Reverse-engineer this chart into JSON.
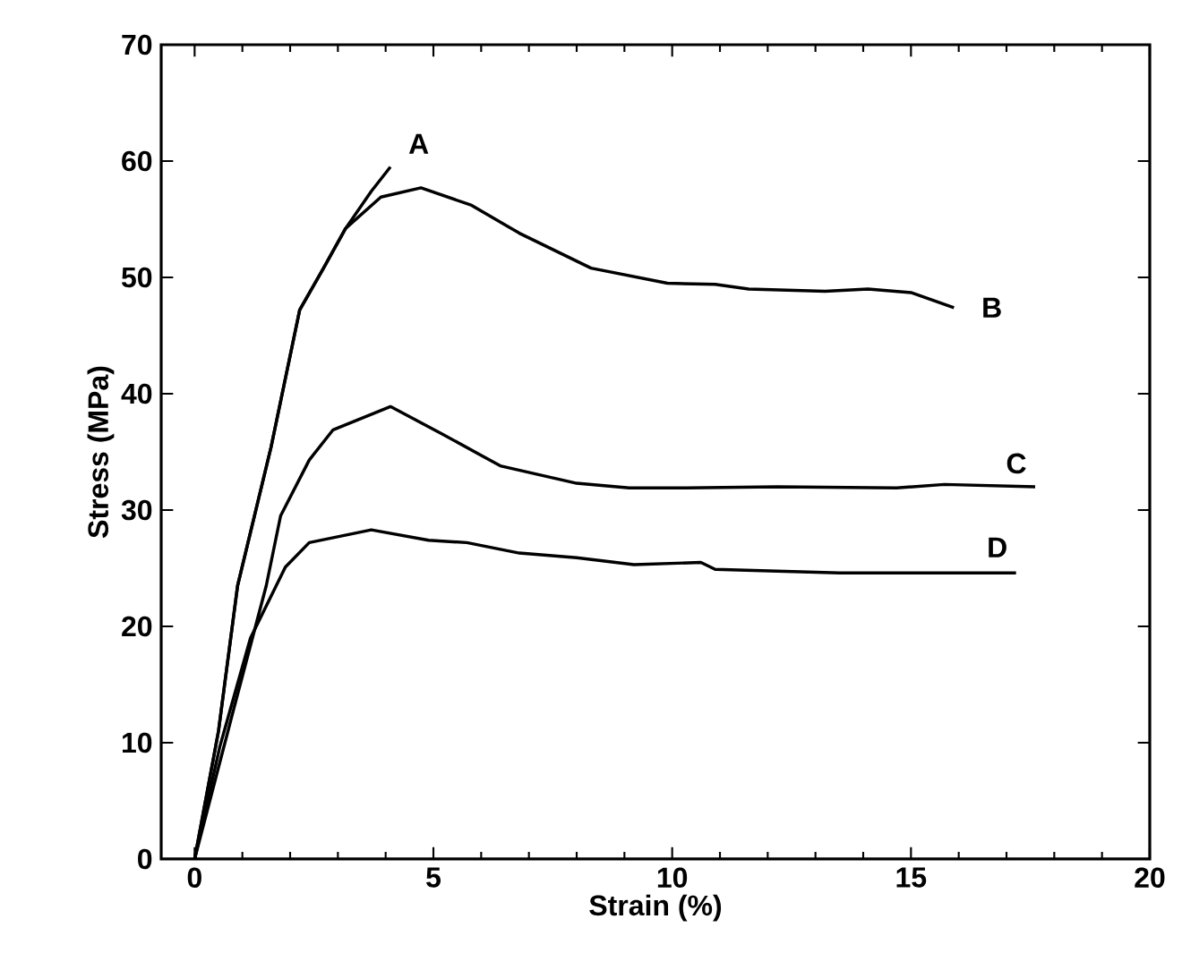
{
  "chart_data": {
    "type": "line",
    "xlabel": "Strain (%)",
    "ylabel": "Stress (MPa)",
    "xlim": [
      -0.7,
      20
    ],
    "ylim": [
      0,
      70
    ],
    "xticks": [
      0,
      5,
      10,
      15,
      20
    ],
    "yticks": [
      0,
      10,
      20,
      30,
      40,
      50,
      60,
      70
    ],
    "grid": false,
    "legend": false,
    "marker": "none",
    "line_style": "solid",
    "series": [
      {
        "name": "A",
        "color": "#000000",
        "x": [
          0,
          0.5,
          0.9,
          1.6,
          2.2,
          2.7,
          3.16,
          3.7,
          4.1
        ],
        "values": [
          0,
          11,
          23.5,
          35.4,
          47.2,
          50.8,
          54.2,
          57.4,
          59.5
        ]
      },
      {
        "name": "B",
        "color": "#000000",
        "x": [
          0,
          0.5,
          0.9,
          1.6,
          2.2,
          2.7,
          3.16,
          3.9,
          4.74,
          5.8,
          6.8,
          8.3,
          9.9,
          10.9,
          11.6,
          13.2,
          14.1,
          15.0,
          15.9
        ],
        "values": [
          0,
          11,
          23.5,
          35.4,
          47.2,
          50.8,
          54.2,
          56.9,
          57.7,
          56.2,
          53.8,
          50.8,
          49.5,
          49.4,
          49.0,
          48.8,
          49.0,
          48.7,
          47.4
        ]
      },
      {
        "name": "C",
        "color": "#000000",
        "x": [
          0,
          0.8,
          1.5,
          1.8,
          2.4,
          2.9,
          4.1,
          5.2,
          6.4,
          8.0,
          9.1,
          10.3,
          12.2,
          14.7,
          15.7,
          17.6
        ],
        "values": [
          0,
          12.6,
          23.5,
          29.5,
          34.3,
          36.9,
          38.9,
          36.5,
          33.8,
          32.3,
          31.9,
          31.9,
          32.0,
          31.9,
          32.2,
          32.0
        ]
      },
      {
        "name": "D",
        "color": "#000000",
        "x": [
          0,
          0.53,
          1.17,
          1.9,
          2.4,
          3.7,
          4.9,
          5.7,
          6.8,
          8.0,
          9.2,
          10.6,
          10.9,
          13.5,
          17.2
        ],
        "values": [
          0,
          9.7,
          19,
          25.1,
          27.2,
          28.3,
          27.4,
          27.2,
          26.3,
          25.9,
          25.3,
          25.5,
          24.9,
          24.6,
          24.6
        ]
      }
    ]
  }
}
